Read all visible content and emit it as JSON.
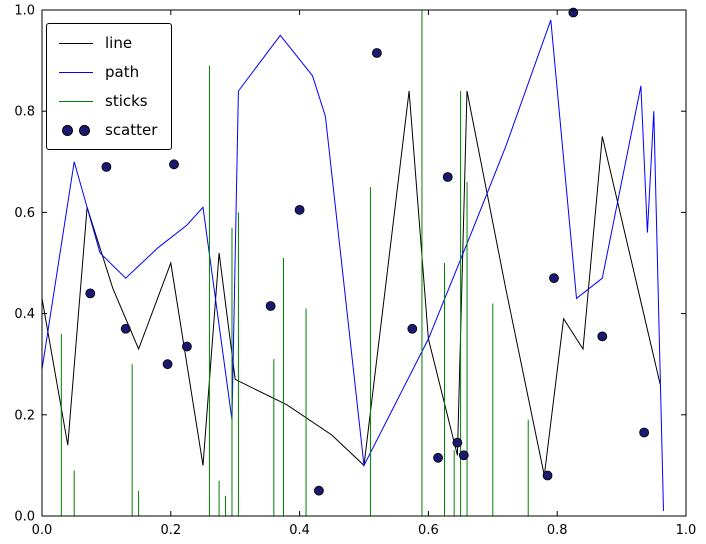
{
  "figure": {
    "background": "#ffffff",
    "frame_color": "#000000"
  },
  "chart_data": {
    "type": "mixed",
    "title": "",
    "xlabel": "",
    "ylabel": "",
    "xlim": [
      0.0,
      1.0
    ],
    "ylim": [
      0.0,
      1.0
    ],
    "grid": false,
    "xticks": [
      "0.0",
      "0.2",
      "0.4",
      "0.6",
      "0.8",
      "1.0"
    ],
    "yticks": [
      "0.0",
      "0.2",
      "0.4",
      "0.6",
      "0.8",
      "1.0"
    ],
    "legend": {
      "position": "upper-left",
      "entries": [
        "line",
        "path",
        "sticks",
        "scatter"
      ]
    },
    "series": [
      {
        "name": "line",
        "type": "line",
        "color": "#000000",
        "x": [
          0.0,
          0.04,
          0.07,
          0.11,
          0.15,
          0.2,
          0.25,
          0.275,
          0.3,
          0.38,
          0.45,
          0.5,
          0.57,
          0.6,
          0.645,
          0.66,
          0.72,
          0.78,
          0.81,
          0.84,
          0.87,
          0.96
        ],
        "y": [
          0.43,
          0.14,
          0.61,
          0.45,
          0.33,
          0.5,
          0.1,
          0.52,
          0.27,
          0.22,
          0.16,
          0.1,
          0.84,
          0.35,
          0.12,
          0.84,
          0.45,
          0.08,
          0.39,
          0.33,
          0.75,
          0.26
        ]
      },
      {
        "name": "path",
        "type": "line",
        "color": "#0000ff",
        "x": [
          0.0,
          0.05,
          0.09,
          0.13,
          0.18,
          0.225,
          0.25,
          0.295,
          0.305,
          0.37,
          0.42,
          0.44,
          0.5,
          0.6,
          0.67,
          0.72,
          0.79,
          0.83,
          0.85,
          0.87,
          0.93,
          0.94,
          0.95,
          0.965
        ],
        "y": [
          0.29,
          0.7,
          0.52,
          0.47,
          0.53,
          0.575,
          0.61,
          0.19,
          0.84,
          0.95,
          0.87,
          0.79,
          0.1,
          0.35,
          0.57,
          0.73,
          0.98,
          0.43,
          0.45,
          0.47,
          0.85,
          0.56,
          0.8,
          0.01
        ]
      },
      {
        "name": "sticks",
        "type": "stem",
        "color": "#008000",
        "x": [
          0.03,
          0.05,
          0.14,
          0.15,
          0.26,
          0.275,
          0.285,
          0.295,
          0.305,
          0.36,
          0.375,
          0.41,
          0.51,
          0.59,
          0.625,
          0.64,
          0.65,
          0.66,
          0.7,
          0.755
        ],
        "y": [
          0.36,
          0.09,
          0.3,
          0.05,
          0.89,
          0.07,
          0.04,
          0.57,
          0.6,
          0.31,
          0.51,
          0.41,
          0.65,
          1.0,
          0.5,
          0.13,
          0.84,
          0.66,
          0.42,
          0.19
        ]
      },
      {
        "name": "scatter",
        "type": "scatter",
        "color": "#191970",
        "edge_color": "#000000",
        "x": [
          0.075,
          0.1,
          0.13,
          0.195,
          0.205,
          0.225,
          0.355,
          0.4,
          0.43,
          0.52,
          0.575,
          0.615,
          0.63,
          0.645,
          0.655,
          0.785,
          0.795,
          0.825,
          0.87,
          0.935
        ],
        "y": [
          0.44,
          0.69,
          0.37,
          0.3,
          0.695,
          0.335,
          0.415,
          0.605,
          0.05,
          0.915,
          0.37,
          0.115,
          0.67,
          0.145,
          0.12,
          0.08,
          0.47,
          0.995,
          0.355,
          0.165
        ]
      }
    ]
  }
}
